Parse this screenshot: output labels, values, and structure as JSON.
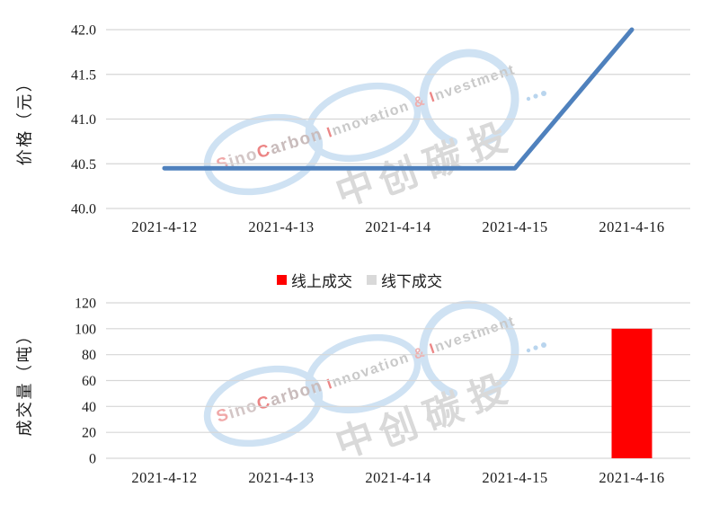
{
  "page": {
    "background": "#ffffff"
  },
  "legend": {
    "items": [
      {
        "label": "线上成交",
        "color": "#FF0000"
      },
      {
        "label": "线下成交",
        "color": "#D9D9D9"
      }
    ]
  },
  "watermark": {
    "sino_s": "S",
    "sino_ino": "ino",
    "carbon_c": "C",
    "carbon_rest": "arbon",
    "innovation_i": "I",
    "innovation_rest": "nnovation ",
    "ampersand": "& ",
    "investment_i": "I",
    "investment_rest": "nvestment",
    "cn_char_1": "中",
    "cn_char_2": "创",
    "cn_char_3": "碳",
    "cn_char_4": "投",
    "circle_color": "#cfe2f3",
    "accent_red": "#ec8585",
    "soft_pink": "#f0a8a8",
    "soft_gray": "#c9c1c1"
  },
  "chart_data": [
    {
      "type": "line",
      "title": "",
      "ylabel": "价格（元）",
      "xlabel": "",
      "categories": [
        "2021-4-12",
        "2021-4-13",
        "2021-4-14",
        "2021-4-15",
        "2021-4-16"
      ],
      "series": [
        {
          "name": "价格",
          "color": "#4F81BD",
          "values": [
            40.45,
            40.45,
            40.45,
            40.45,
            42.0
          ]
        }
      ],
      "ylim": [
        40.0,
        42.0
      ],
      "ytick_step": 0.5,
      "yticks": [
        "42.0",
        "41.5",
        "41.0",
        "40.5",
        "40.0"
      ],
      "grid": true,
      "legend_position": "none"
    },
    {
      "type": "bar",
      "title": "",
      "ylabel": "成交量（吨）",
      "xlabel": "",
      "categories": [
        "2021-4-12",
        "2021-4-13",
        "2021-4-14",
        "2021-4-15",
        "2021-4-16"
      ],
      "series": [
        {
          "name": "线上成交",
          "color": "#FF0000",
          "values": [
            0,
            0,
            0,
            0,
            100
          ]
        },
        {
          "name": "线下成交",
          "color": "#D9D9D9",
          "values": [
            0,
            0,
            0,
            0,
            0
          ]
        }
      ],
      "ylim": [
        0,
        120
      ],
      "ytick_step": 20,
      "yticks": [
        "120",
        "100",
        "80",
        "60",
        "40",
        "20",
        "0"
      ],
      "grid": true,
      "legend_position": "top"
    }
  ]
}
